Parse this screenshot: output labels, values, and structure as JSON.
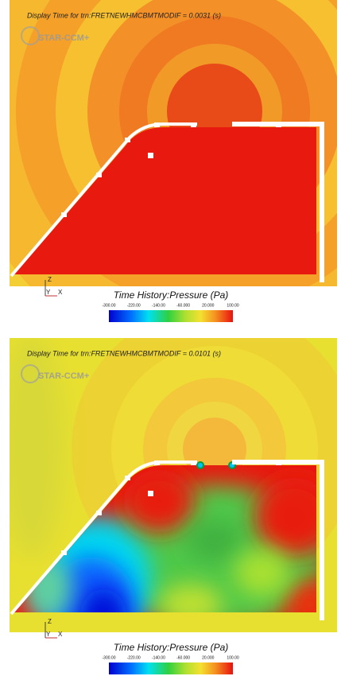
{
  "panels": [
    {
      "display_time": "Display Time for trn:FRETNEWHMCBMTMODIF = 0.0031 (s)",
      "logo": "STAR-CCM+",
      "legend_title": "Time History:Pressure (Pa)",
      "legend_ticks": [
        "-300.00",
        "-220.00",
        "-140.00",
        "-60.000",
        "20.000",
        "100.00"
      ],
      "axes": [
        "Z",
        "Y",
        "X"
      ]
    },
    {
      "display_time": "Display Time for trn:FRETNEWHMCBMTMODIF = 0.0101 (s)",
      "logo": "STAR-CCM+",
      "legend_title": "Time History:Pressure (Pa)",
      "legend_ticks": [
        "-300.00",
        "-220.00",
        "-140.00",
        "-60.000",
        "20.000",
        "100.00"
      ],
      "axes": [
        "Z",
        "Y",
        "X"
      ]
    }
  ]
}
